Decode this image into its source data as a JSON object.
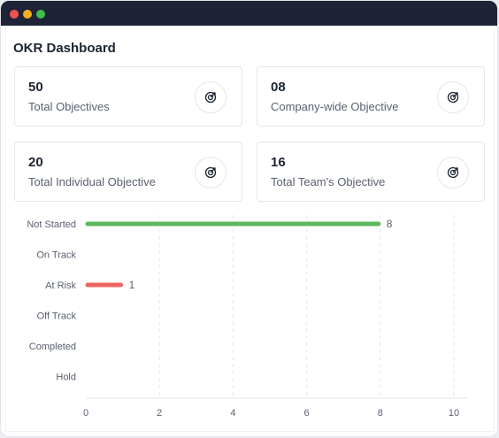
{
  "header": {
    "title": "OKR Dashboard"
  },
  "cards": [
    {
      "value": "50",
      "label": "Total Objectives",
      "icon": "target-icon"
    },
    {
      "value": "08",
      "label": "Company-wide Objective",
      "icon": "target-icon"
    },
    {
      "value": "20",
      "label": "Total Individual Objective",
      "icon": "target-icon"
    },
    {
      "value": "16",
      "label": "Total Team's Objective",
      "icon": "target-icon"
    }
  ],
  "chart_data": {
    "type": "bar",
    "orientation": "horizontal",
    "categories": [
      "Not Started",
      "On Track",
      "At Risk",
      "Off Track",
      "Completed",
      "Hold"
    ],
    "values": [
      8,
      0,
      1,
      0,
      0,
      0
    ],
    "data_labels": [
      "8",
      "",
      "1",
      "",
      "",
      ""
    ],
    "bar_colors": [
      "#5cb85c",
      "#5cb85c",
      "#ef6461",
      "#5cb85c",
      "#5cb85c",
      "#5cb85c"
    ],
    "xlim": [
      0,
      10.5
    ],
    "x_ticks": [
      0,
      2,
      4,
      6,
      8,
      10
    ],
    "grid": "vertical-dashed",
    "title": "",
    "xlabel": "",
    "ylabel": ""
  },
  "colors": {
    "titlebar": "#1e2337",
    "close": "#f0524f",
    "minimize": "#f5b01f",
    "maximize": "#3fbf4a",
    "green": "#5cb85c",
    "red": "#ef6461"
  }
}
